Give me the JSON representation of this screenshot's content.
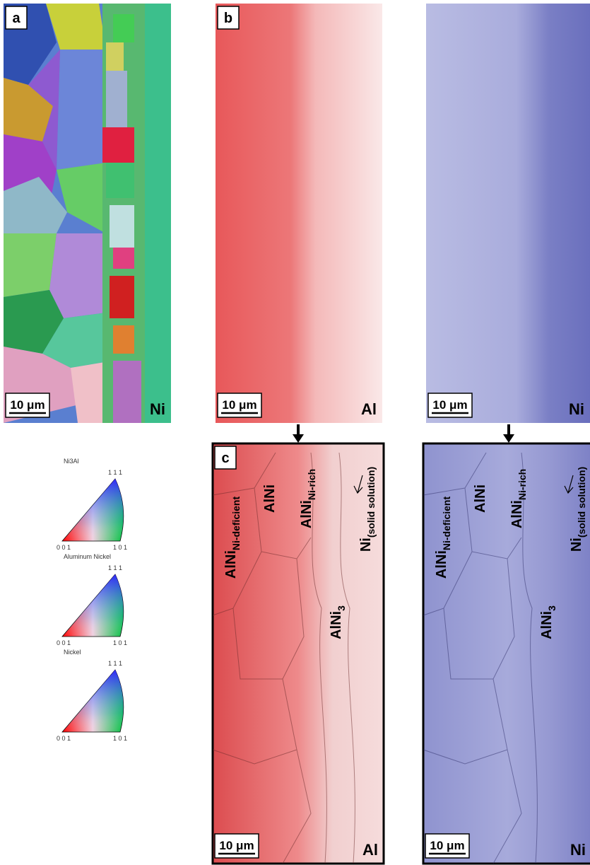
{
  "panels": [
    {
      "label": "a",
      "scale_bar": "10 μm",
      "element": "Ni"
    },
    {
      "label": "b",
      "scale_bar": "10 μm",
      "element": "Al"
    },
    {
      "scale_bar": "10 μm",
      "element": "Ni"
    },
    {
      "label": "c",
      "scale_bar": "10 μm",
      "element": "Al",
      "phases": [
        {
          "base": "AlNi",
          "sub": "Ni-deficient"
        },
        {
          "base": "AlNi"
        },
        {
          "base": "AlNi",
          "sub": "Ni-rich"
        },
        {
          "base": "AlNi",
          "sub": "3"
        },
        {
          "base": "Ni",
          "sub": "(solid solution)"
        }
      ]
    },
    {
      "scale_bar": "10 μm",
      "element": "Ni",
      "phases": [
        {
          "base": "AlNi",
          "sub": "Ni-deficient"
        },
        {
          "base": "AlNi"
        },
        {
          "base": "AlNi",
          "sub": "Ni-rich"
        },
        {
          "base": "AlNi",
          "sub": "3"
        },
        {
          "base": "Ni",
          "sub": "(solid solution)"
        }
      ]
    }
  ],
  "legend": [
    {
      "title": "Ni3Al",
      "top": "1 1 1",
      "left": "0 0 1",
      "right": "1 0 1"
    },
    {
      "title": "Aluminum Nickel",
      "top": "1 1 1",
      "left": "0 0 1",
      "right": "1 0 1"
    },
    {
      "title": "Nickel",
      "top": "1 1 1",
      "left": "0 0 1",
      "right": "1 0 1"
    }
  ]
}
